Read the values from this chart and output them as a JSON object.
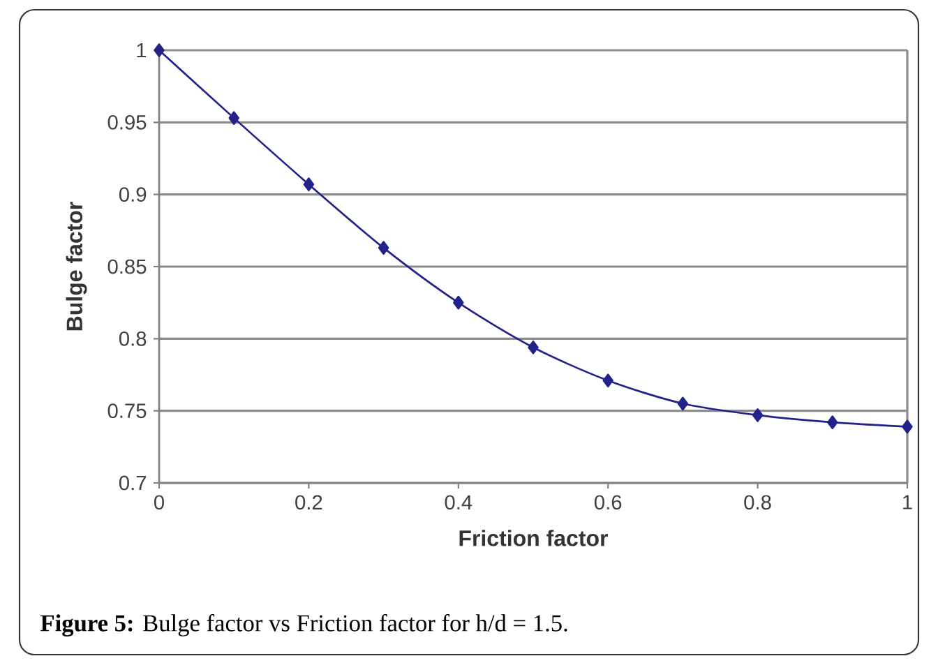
{
  "chart_data": {
    "type": "line",
    "xlabel": "Friction factor",
    "ylabel": "Bulge factor",
    "x": [
      0,
      0.1,
      0.2,
      0.3,
      0.4,
      0.5,
      0.6,
      0.7,
      0.8,
      0.9,
      1
    ],
    "series": [
      {
        "color": "#22228a",
        "values": [
          1,
          0.953,
          0.907,
          0.863,
          0.825,
          0.794,
          0.771,
          0.755,
          0.747,
          0.742,
          0.739
        ]
      }
    ],
    "xlim": [
      0,
      1
    ],
    "ylim": [
      0.7,
      1
    ],
    "xticks": [
      0,
      0.2,
      0.4,
      0.6,
      0.8,
      1
    ],
    "yticks": [
      0.7,
      0.75,
      0.8,
      0.85,
      0.9,
      0.95,
      1
    ],
    "grid": "y",
    "marker": "diamond",
    "line_style": "solid",
    "annotations": [
      "**Figure 5:** Bulge factor vs Friction factor for h/d = 1.5."
    ]
  }
}
